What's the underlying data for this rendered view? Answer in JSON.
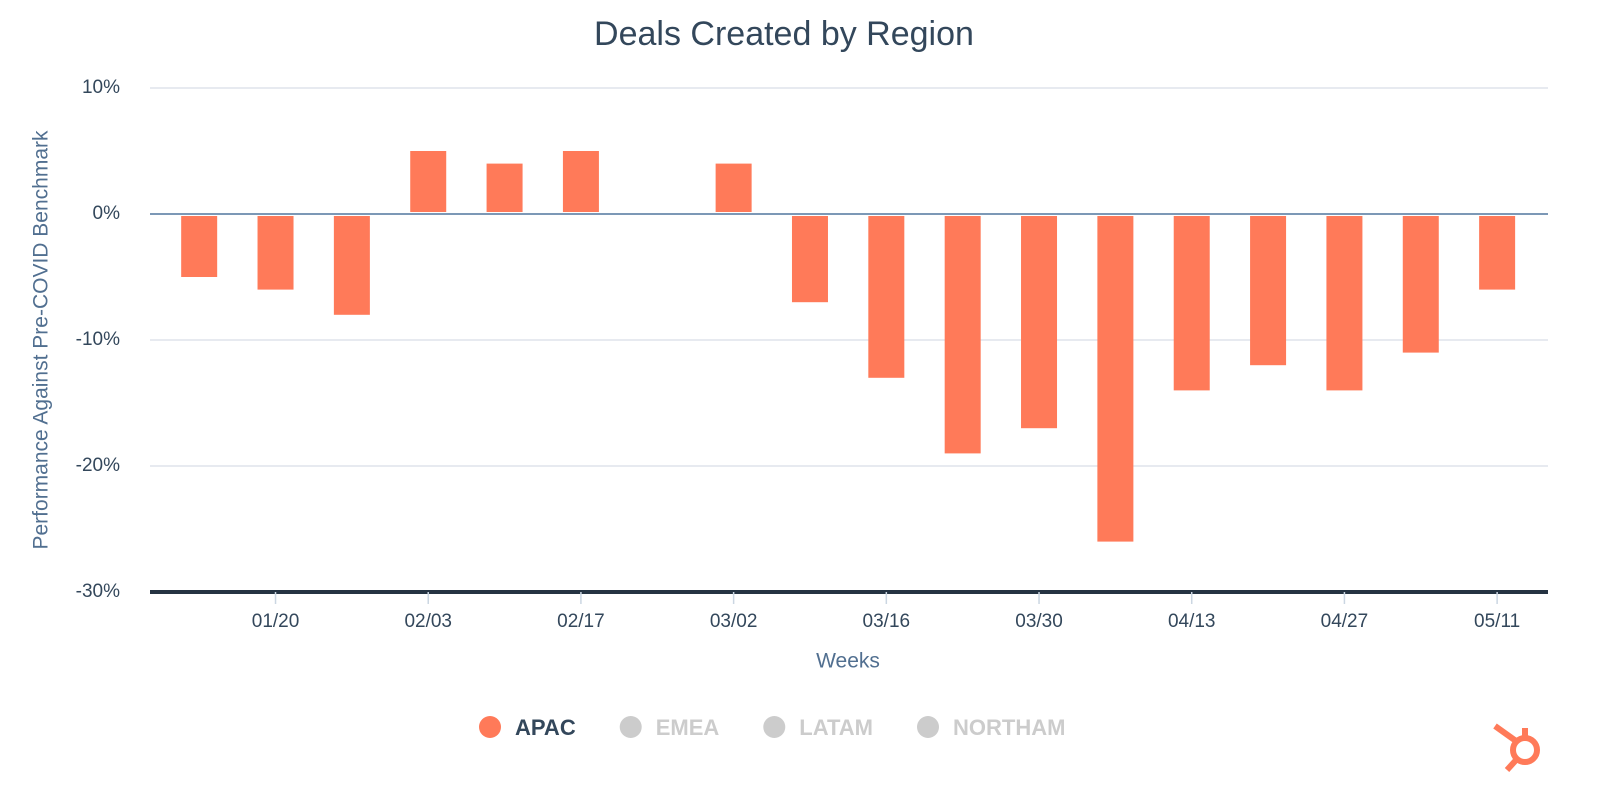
{
  "chart_data": {
    "type": "bar",
    "title": "Deals Created by Region",
    "x_label": "Weeks",
    "y_label": "Performance Against Pre-COVID Benchmark",
    "categories": [
      null,
      "01/20",
      null,
      "02/03",
      null,
      "02/17",
      null,
      "03/02",
      null,
      "03/16",
      null,
      "03/30",
      null,
      "04/13",
      null,
      "04/27",
      null,
      "05/11"
    ],
    "series": [
      {
        "name": "APAC",
        "color": "#ff7a59",
        "values": [
          -5,
          -6,
          -8,
          5,
          4,
          5,
          null,
          4,
          -7,
          -13,
          -19,
          -17,
          -26,
          -14,
          -12,
          -14,
          -11,
          -6
        ]
      }
    ],
    "hidden_series": [
      {
        "name": "EMEA",
        "color": "#cccccc"
      },
      {
        "name": "LATAM",
        "color": "#cccccc"
      },
      {
        "name": "NORTHAM",
        "color": "#cccccc"
      }
    ],
    "ylim": [
      -30,
      10
    ],
    "yticks": [
      {
        "value": -30,
        "label": "-30%"
      },
      {
        "value": -20,
        "label": "-20%"
      },
      {
        "value": -10,
        "label": "-10%"
      },
      {
        "value": 0,
        "label": "0%"
      },
      {
        "value": 10,
        "label": "10%"
      }
    ],
    "grid": true,
    "legend": "bottom"
  }
}
